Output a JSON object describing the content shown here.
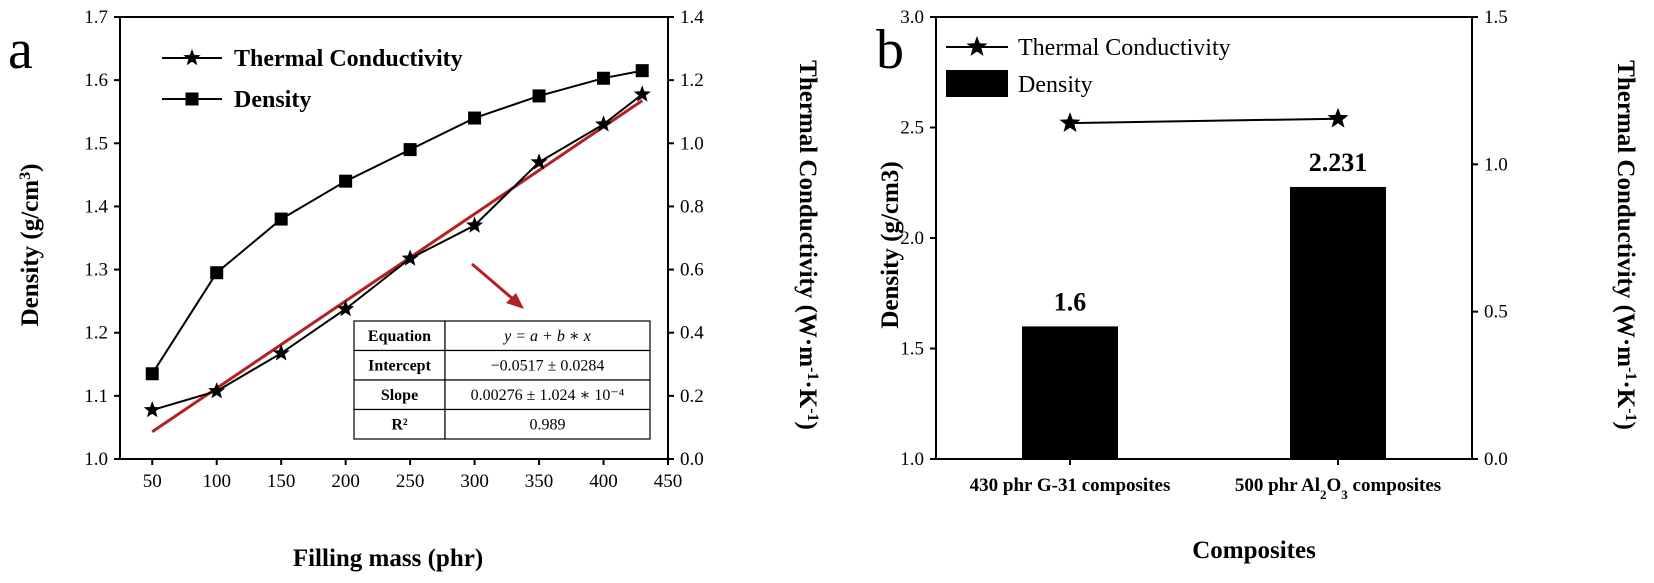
{
  "panel_a_label": "a",
  "panel_b_label": "b",
  "chart_data": [
    {
      "type": "line",
      "x_label": "Filling mass (phr)",
      "y_label_left": "Density (g/cm3)",
      "y_label_right": "Thermal Conductivity (W·m-1·K-1)",
      "xlim": [
        25,
        450
      ],
      "ylim_left": [
        1.0,
        1.7
      ],
      "ylim_right": [
        0.0,
        1.4
      ],
      "x_ticks": [
        "50",
        "100",
        "150",
        "200",
        "250",
        "300",
        "350",
        "400",
        "450"
      ],
      "y_ticks_left": [
        "1.0",
        "1.1",
        "1.2",
        "1.3",
        "1.4",
        "1.5",
        "1.6",
        "1.7"
      ],
      "y_ticks_right": [
        "0.0",
        "0.2",
        "0.4",
        "0.6",
        "0.8",
        "1.0",
        "1.2",
        "1.4"
      ],
      "legend_placement": "top-left",
      "series": [
        {
          "name": "Thermal Conductivity",
          "axis": "right",
          "marker": "star",
          "x": [
            50,
            100,
            150,
            200,
            250,
            300,
            350,
            400,
            430
          ],
          "values": [
            0.155,
            0.215,
            0.335,
            0.475,
            0.635,
            0.74,
            0.94,
            1.06,
            1.155
          ]
        },
        {
          "name": "Density",
          "axis": "left",
          "marker": "square",
          "x": [
            50,
            100,
            150,
            200,
            250,
            300,
            350,
            400,
            430
          ],
          "values": [
            1.135,
            1.295,
            1.38,
            1.44,
            1.49,
            1.54,
            1.575,
            1.603,
            1.615
          ]
        }
      ],
      "fit_line": {
        "color": "#b22222",
        "axis": "right",
        "intercept": -0.0517,
        "slope": 0.00276,
        "x_range": [
          50,
          430
        ]
      },
      "fit_table": {
        "rows": [
          {
            "label": "Equation",
            "value": "y = a + b ∗ x"
          },
          {
            "label": "Intercept",
            "value": "−0.0517 ± 0.0284"
          },
          {
            "label": "Slope",
            "value": "0.00276 ± 1.024 ∗ 10⁻⁴"
          },
          {
            "label": "R²",
            "value": "0.989"
          }
        ]
      }
    },
    {
      "type": "bar",
      "x_label": "Composites",
      "y_label_left": "Density (g/cm3)",
      "y_label_right": "Thermal Conductivity (W·m-1·K-1)",
      "ylim_left": [
        1.0,
        3.0
      ],
      "ylim_right": [
        0.0,
        1.5
      ],
      "y_ticks_left": [
        "1.0",
        "1.5",
        "2.0",
        "2.5",
        "3.0"
      ],
      "y_ticks_right": [
        "0.0",
        "0.5",
        "1.0",
        "1.5"
      ],
      "categories": [
        "430 phr G-31 composites",
        "500 phr Al2O3 composites"
      ],
      "legend_placement": "top-left",
      "series": [
        {
          "name": "Density",
          "axis": "left",
          "values": [
            1.6,
            2.231
          ],
          "data_labels": [
            "1.6",
            "2.231"
          ]
        },
        {
          "name": "Thermal Conductivity",
          "axis": "right",
          "marker": "star",
          "values": [
            1.14,
            1.155
          ]
        }
      ]
    }
  ]
}
